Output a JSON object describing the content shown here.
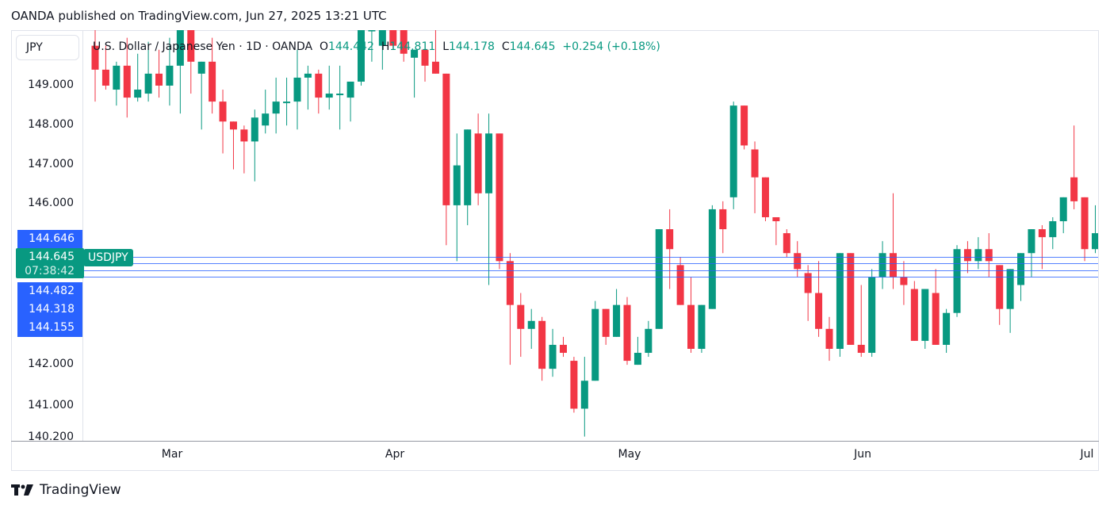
{
  "header": {
    "published": "OANDA published on TradingView.com, Jun 27, 2025 13:21 UTC"
  },
  "symbol_box": {
    "label": "JPY"
  },
  "legend": {
    "title": "U.S. Dollar / Japanese Yen · 1D · OANDA",
    "o_key": "O",
    "o_val": "144.442",
    "h_key": "H",
    "h_val": "144.811",
    "l_key": "L",
    "l_val": "144.178",
    "c_key": "C",
    "c_val": "144.645",
    "change": "+0.254 (+0.18%)"
  },
  "price_axis": {
    "ticks": [
      "149.000",
      "148.000",
      "147.000",
      "146.000",
      "142.000",
      "141.000",
      "140.200"
    ],
    "tags": {
      "top": "144.646",
      "last": "144.645",
      "countdown": "07:38:42",
      "t1": "144.482",
      "t2": "144.318",
      "t3": "144.155"
    },
    "symbol_tag": "USDJPY"
  },
  "time_axis": {
    "labels": [
      "Mar",
      "Apr",
      "May",
      "Jun",
      "Jul"
    ]
  },
  "footer": {
    "brand": "TradingView"
  },
  "colors": {
    "up": "#089981",
    "down": "#f23645",
    "line": "#2962ff"
  },
  "chart_data": {
    "type": "candlestick",
    "title": "U.S. Dollar / Japanese Yen · 1D · OANDA",
    "symbol": "USDJPY",
    "xlabel": "",
    "ylabel": "JPY",
    "ylim": [
      140.2,
      150.4
    ],
    "x_ticks": [
      "Mar",
      "Apr",
      "May",
      "Jun",
      "Jul"
    ],
    "y_ticks": [
      149,
      148,
      147,
      146,
      142,
      141
    ],
    "horizontal_lines": [
      144.646,
      144.482,
      144.318,
      144.155
    ],
    "last": {
      "open": 144.442,
      "high": 144.811,
      "low": 144.178,
      "close": 144.645,
      "change": 0.254,
      "change_pct": 0.18
    },
    "candles": [
      {
        "o": 150.0,
        "h": 150.4,
        "l": 148.6,
        "c": 149.4
      },
      {
        "o": 149.4,
        "h": 150.0,
        "l": 148.9,
        "c": 149.0
      },
      {
        "o": 148.9,
        "h": 149.6,
        "l": 148.5,
        "c": 149.5
      },
      {
        "o": 149.5,
        "h": 150.2,
        "l": 148.2,
        "c": 148.7
      },
      {
        "o": 148.7,
        "h": 149.8,
        "l": 148.6,
        "c": 148.9
      },
      {
        "o": 148.8,
        "h": 150.1,
        "l": 148.6,
        "c": 149.3
      },
      {
        "o": 149.3,
        "h": 149.9,
        "l": 148.7,
        "c": 149.0
      },
      {
        "o": 149.0,
        "h": 150.2,
        "l": 148.5,
        "c": 149.5
      },
      {
        "o": 149.5,
        "h": 150.4,
        "l": 148.3,
        "c": 150.4
      },
      {
        "o": 150.4,
        "h": 150.4,
        "l": 148.8,
        "c": 149.6
      },
      {
        "o": 149.3,
        "h": 149.6,
        "l": 147.9,
        "c": 149.6
      },
      {
        "o": 149.6,
        "h": 150.2,
        "l": 148.3,
        "c": 148.6
      },
      {
        "o": 148.6,
        "h": 148.9,
        "l": 147.3,
        "c": 148.1
      },
      {
        "o": 148.1,
        "h": 148.1,
        "l": 146.9,
        "c": 147.9
      },
      {
        "o": 147.9,
        "h": 148.0,
        "l": 146.8,
        "c": 147.6
      },
      {
        "o": 147.6,
        "h": 148.4,
        "l": 146.6,
        "c": 148.2
      },
      {
        "o": 148.0,
        "h": 148.9,
        "l": 147.8,
        "c": 148.3
      },
      {
        "o": 148.3,
        "h": 149.2,
        "l": 147.8,
        "c": 148.6
      },
      {
        "o": 148.6,
        "h": 149.2,
        "l": 148.0,
        "c": 148.6
      },
      {
        "o": 148.6,
        "h": 149.9,
        "l": 147.9,
        "c": 149.2
      },
      {
        "o": 149.2,
        "h": 149.5,
        "l": 148.4,
        "c": 149.3
      },
      {
        "o": 149.3,
        "h": 149.4,
        "l": 148.3,
        "c": 148.7
      },
      {
        "o": 148.7,
        "h": 149.5,
        "l": 148.4,
        "c": 148.8
      },
      {
        "o": 148.8,
        "h": 149.5,
        "l": 147.9,
        "c": 148.8
      },
      {
        "o": 148.7,
        "h": 149.1,
        "l": 148.1,
        "c": 149.1
      },
      {
        "o": 149.1,
        "h": 150.4,
        "l": 149.0,
        "c": 150.4
      },
      {
        "o": 150.4,
        "h": 150.4,
        "l": 149.6,
        "c": 150.4
      },
      {
        "o": 150.0,
        "h": 150.4,
        "l": 149.4,
        "c": 150.4
      },
      {
        "o": 150.4,
        "h": 150.4,
        "l": 149.9,
        "c": 150.0
      },
      {
        "o": 150.4,
        "h": 150.4,
        "l": 149.6,
        "c": 149.8
      },
      {
        "o": 149.7,
        "h": 149.9,
        "l": 148.7,
        "c": 149.9
      },
      {
        "o": 149.9,
        "h": 150.0,
        "l": 149.1,
        "c": 149.5
      },
      {
        "o": 149.6,
        "h": 150.4,
        "l": 149.3,
        "c": 149.3
      },
      {
        "o": 149.3,
        "h": 149.3,
        "l": 145.0,
        "c": 146.0
      },
      {
        "o": 146.0,
        "h": 147.8,
        "l": 144.6,
        "c": 147.0
      },
      {
        "o": 146.0,
        "h": 147.9,
        "l": 145.5,
        "c": 147.9
      },
      {
        "o": 147.8,
        "h": 148.3,
        "l": 146.0,
        "c": 146.3
      },
      {
        "o": 146.3,
        "h": 148.3,
        "l": 144.0,
        "c": 147.8
      },
      {
        "o": 147.8,
        "h": 147.8,
        "l": 144.4,
        "c": 144.6
      },
      {
        "o": 144.6,
        "h": 144.8,
        "l": 142.0,
        "c": 143.5
      },
      {
        "o": 143.5,
        "h": 143.8,
        "l": 142.2,
        "c": 142.9
      },
      {
        "o": 142.9,
        "h": 143.4,
        "l": 142.4,
        "c": 143.1
      },
      {
        "o": 143.1,
        "h": 143.2,
        "l": 141.6,
        "c": 141.9
      },
      {
        "o": 141.9,
        "h": 142.9,
        "l": 141.7,
        "c": 142.5
      },
      {
        "o": 142.5,
        "h": 142.7,
        "l": 142.2,
        "c": 142.3
      },
      {
        "o": 142.1,
        "h": 142.2,
        "l": 140.8,
        "c": 140.9
      },
      {
        "o": 140.9,
        "h": 142.2,
        "l": 140.2,
        "c": 141.6
      },
      {
        "o": 141.6,
        "h": 143.6,
        "l": 141.6,
        "c": 143.4
      },
      {
        "o": 143.4,
        "h": 143.4,
        "l": 142.5,
        "c": 142.7
      },
      {
        "o": 142.7,
        "h": 143.9,
        "l": 142.7,
        "c": 143.5
      },
      {
        "o": 143.5,
        "h": 143.7,
        "l": 142.0,
        "c": 142.1
      },
      {
        "o": 142.0,
        "h": 142.7,
        "l": 142.0,
        "c": 142.3
      },
      {
        "o": 142.3,
        "h": 143.1,
        "l": 142.2,
        "c": 142.9
      },
      {
        "o": 142.9,
        "h": 144.9,
        "l": 142.9,
        "c": 145.4
      },
      {
        "o": 145.4,
        "h": 145.9,
        "l": 143.9,
        "c": 144.9
      },
      {
        "o": 144.5,
        "h": 144.7,
        "l": 143.5,
        "c": 143.5
      },
      {
        "o": 143.5,
        "h": 144.2,
        "l": 142.3,
        "c": 142.4
      },
      {
        "o": 142.4,
        "h": 143.4,
        "l": 142.3,
        "c": 143.5
      },
      {
        "o": 143.4,
        "h": 146.0,
        "l": 143.4,
        "c": 145.9
      },
      {
        "o": 145.9,
        "h": 146.1,
        "l": 144.8,
        "c": 145.4
      },
      {
        "o": 146.2,
        "h": 148.6,
        "l": 145.9,
        "c": 148.5
      },
      {
        "o": 148.5,
        "h": 148.5,
        "l": 147.4,
        "c": 147.5
      },
      {
        "o": 147.4,
        "h": 147.6,
        "l": 145.8,
        "c": 146.7
      },
      {
        "o": 146.7,
        "h": 146.7,
        "l": 145.6,
        "c": 145.7
      },
      {
        "o": 145.7,
        "h": 145.3,
        "l": 145.0,
        "c": 145.6
      },
      {
        "o": 145.3,
        "h": 145.4,
        "l": 144.7,
        "c": 144.8
      },
      {
        "o": 144.8,
        "h": 145.1,
        "l": 144.2,
        "c": 144.4
      },
      {
        "o": 144.3,
        "h": 144.5,
        "l": 143.1,
        "c": 143.8
      },
      {
        "o": 143.8,
        "h": 144.6,
        "l": 142.7,
        "c": 142.9
      },
      {
        "o": 142.9,
        "h": 143.2,
        "l": 142.1,
        "c": 142.4
      },
      {
        "o": 142.4,
        "h": 144.8,
        "l": 142.2,
        "c": 144.8
      },
      {
        "o": 144.8,
        "h": 144.7,
        "l": 142.5,
        "c": 142.5
      },
      {
        "o": 142.5,
        "h": 144.0,
        "l": 142.2,
        "c": 142.3
      },
      {
        "o": 142.3,
        "h": 144.4,
        "l": 142.2,
        "c": 144.2
      },
      {
        "o": 144.2,
        "h": 145.1,
        "l": 143.9,
        "c": 144.8
      },
      {
        "o": 144.8,
        "h": 146.3,
        "l": 143.9,
        "c": 144.2
      },
      {
        "o": 144.2,
        "h": 144.6,
        "l": 143.5,
        "c": 144.0
      },
      {
        "o": 143.9,
        "h": 144.1,
        "l": 142.6,
        "c": 142.6
      },
      {
        "o": 142.6,
        "h": 143.9,
        "l": 142.4,
        "c": 143.9
      },
      {
        "o": 143.8,
        "h": 144.4,
        "l": 142.6,
        "c": 142.5
      },
      {
        "o": 142.5,
        "h": 143.4,
        "l": 142.3,
        "c": 143.3
      },
      {
        "o": 143.3,
        "h": 145.0,
        "l": 143.2,
        "c": 144.9
      },
      {
        "o": 144.9,
        "h": 145.1,
        "l": 144.3,
        "c": 144.6
      },
      {
        "o": 144.6,
        "h": 145.2,
        "l": 144.4,
        "c": 144.9
      },
      {
        "o": 144.9,
        "h": 145.3,
        "l": 144.2,
        "c": 144.6
      },
      {
        "o": 144.5,
        "h": 144.5,
        "l": 143.0,
        "c": 143.4
      },
      {
        "o": 143.4,
        "h": 144.4,
        "l": 142.8,
        "c": 144.4
      },
      {
        "o": 144.0,
        "h": 144.8,
        "l": 143.6,
        "c": 144.8
      },
      {
        "o": 144.8,
        "h": 145.4,
        "l": 144.2,
        "c": 145.4
      },
      {
        "o": 145.4,
        "h": 145.5,
        "l": 144.4,
        "c": 145.2
      },
      {
        "o": 145.2,
        "h": 145.7,
        "l": 144.9,
        "c": 145.6
      },
      {
        "o": 145.6,
        "h": 146.2,
        "l": 145.3,
        "c": 146.2
      },
      {
        "o": 146.7,
        "h": 148.0,
        "l": 145.9,
        "c": 146.1
      },
      {
        "o": 146.2,
        "h": 146.2,
        "l": 144.6,
        "c": 144.9
      },
      {
        "o": 144.9,
        "h": 146.0,
        "l": 144.8,
        "c": 145.3
      },
      {
        "o": 145.2,
        "h": 145.3,
        "l": 143.7,
        "c": 144.3
      },
      {
        "o": 144.442,
        "h": 144.811,
        "l": 144.178,
        "c": 144.645
      }
    ]
  }
}
